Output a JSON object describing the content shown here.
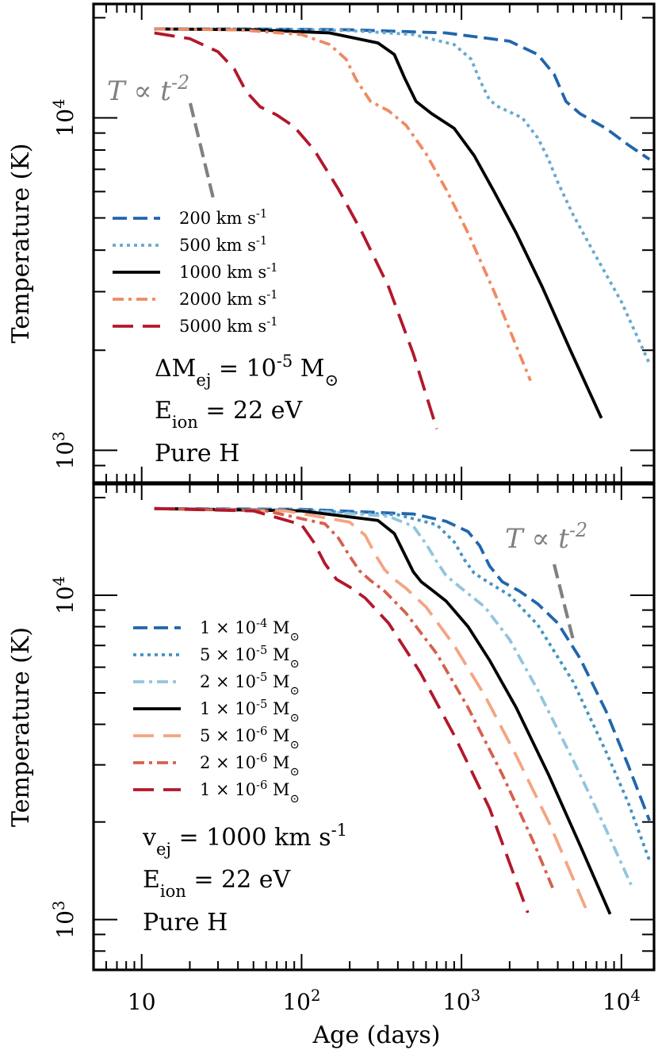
{
  "chart_data": [
    {
      "type": "line",
      "panel": "top",
      "xlabel": "",
      "ylabel": "Temperature (K)",
      "xscale": "log",
      "yscale": "log",
      "xlim": [
        5,
        16000
      ],
      "ylim": [
        800,
        22000
      ],
      "y_tick_labels": [
        "10^3",
        "10^4"
      ],
      "legend_position": "left",
      "annotations": [
        "ΔM_ej = 10^-5 M_⊙",
        "E_ion = 22 eV",
        "Pure H"
      ],
      "slope_label": "T ∝ t^-2",
      "series": [
        {
          "name": "200 km s^-1",
          "color": "#2166ac",
          "dash": "dashed",
          "x": [
            12,
            50,
            200,
            800,
            2000,
            3000,
            3800,
            4500,
            5500,
            8000,
            11000,
            15000
          ],
          "y": [
            18500,
            18500,
            18400,
            18000,
            17000,
            15500,
            13500,
            11200,
            10300,
            9300,
            8300,
            7500
          ]
        },
        {
          "name": "500 km s^-1",
          "color": "#67a9cf",
          "dash": "dotted",
          "x": [
            12,
            50,
            200,
            500,
            900,
            1150,
            1300,
            1500,
            1700,
            2400,
            3000,
            3500,
            4000,
            5000,
            7000,
            10000,
            15000
          ],
          "y": [
            18500,
            18500,
            18300,
            17800,
            16600,
            15000,
            13000,
            11300,
            10800,
            10000,
            8700,
            7500,
            6400,
            5100,
            3800,
            2800,
            1820
          ]
        },
        {
          "name": "1000 km s^-1",
          "color": "#000000",
          "dash": "solid",
          "x": [
            12,
            50,
            150,
            300,
            380,
            440,
            520,
            650,
            900,
            1200,
            1600,
            2200,
            3200,
            4800,
            7500
          ],
          "y": [
            18500,
            18400,
            18000,
            16800,
            15500,
            13200,
            11200,
            10300,
            9300,
            7700,
            6000,
            4500,
            3100,
            2000,
            1250
          ]
        },
        {
          "name": "2000 km s^-1",
          "color": "#ef8a62",
          "dash": "dashdot",
          "x": [
            12,
            40,
            100,
            150,
            190,
            220,
            270,
            350,
            450,
            600,
            800,
            1100,
            1600,
            2700
          ],
          "y": [
            18500,
            18400,
            17800,
            16600,
            15000,
            13000,
            11200,
            10500,
            9500,
            7800,
            6100,
            4500,
            3000,
            1620
          ]
        },
        {
          "name": "5000 km s^-1",
          "color": "#b2182b",
          "dash": "longdash",
          "x": [
            12,
            20,
            30,
            38,
            45,
            55,
            70,
            90,
            120,
            170,
            240,
            350,
            500,
            700
          ],
          "y": [
            18000,
            17300,
            15800,
            14000,
            12000,
            10800,
            10200,
            9400,
            8000,
            6100,
            4500,
            3100,
            1950,
            1160
          ]
        }
      ]
    },
    {
      "type": "line",
      "panel": "bottom",
      "xlabel": "Age (days)",
      "ylabel": "Temperature (K)",
      "xscale": "log",
      "yscale": "log",
      "xlim": [
        5,
        16000
      ],
      "ylim": [
        700,
        22000
      ],
      "x_tick_labels": [
        "10",
        "10^2",
        "10^3",
        "10^4"
      ],
      "y_tick_labels": [
        "10^3",
        "10^4"
      ],
      "legend_position": "left",
      "annotations": [
        "v_ej = 1000 km s^-1",
        "E_ion = 22 eV",
        "Pure H"
      ],
      "slope_label": "T ∝ t^-2",
      "series": [
        {
          "name": "1 × 10^-4 M_⊙",
          "color": "#2166ac",
          "dash": "dashed",
          "x": [
            12,
            100,
            500,
            800,
            1100,
            1300,
            1500,
            1800,
            2300,
            3000,
            4000,
            5500,
            8000,
            11000,
            15000
          ],
          "y": [
            18500,
            18400,
            17800,
            16900,
            15700,
            14200,
            12300,
            11000,
            10300,
            9400,
            8200,
            6400,
            4400,
            3000,
            2020
          ]
        },
        {
          "name": "5 × 10^-5 M_⊙",
          "color": "#4393c3",
          "dash": "dotted",
          "x": [
            12,
            100,
            400,
            700,
            900,
            1050,
            1200,
            1500,
            2000,
            3000,
            5000,
            8000,
            11000,
            15000
          ],
          "y": [
            18500,
            18300,
            17700,
            16500,
            14600,
            12800,
            11700,
            10900,
            10000,
            8100,
            5400,
            3300,
            2300,
            1520
          ]
        },
        {
          "name": "2 × 10^-5 M_⊙",
          "color": "#92c5de",
          "dash": "dashdot",
          "x": [
            12,
            100,
            350,
            500,
            600,
            700,
            800,
            1000,
            1400,
            2000,
            3000,
            5000,
            8000,
            11500
          ],
          "y": [
            18500,
            18300,
            17500,
            16300,
            14400,
            12700,
            11500,
            10500,
            9200,
            7300,
            5100,
            3100,
            1900,
            1280
          ]
        },
        {
          "name": "1 × 10^-5 M_⊙",
          "color": "#000000",
          "dash": "solid",
          "x": [
            12,
            100,
            300,
            380,
            440,
            500,
            560,
            650,
            800,
            1100,
            1500,
            2200,
            3500,
            5500,
            8500
          ],
          "y": [
            18500,
            18200,
            17000,
            15500,
            13400,
            11800,
            11000,
            10400,
            9600,
            8000,
            6300,
            4500,
            2800,
            1700,
            1040
          ]
        },
        {
          "name": "5 × 10^-6 M_⊙",
          "color": "#f4a582",
          "dash": "longdash",
          "x": [
            12,
            80,
            200,
            250,
            290,
            330,
            380,
            450,
            600,
            900,
            1400,
            2200,
            3600,
            6000
          ],
          "y": [
            18500,
            18200,
            16800,
            15300,
            13300,
            12000,
            11200,
            10500,
            9200,
            7000,
            4900,
            3200,
            1950,
            1080
          ]
        },
        {
          "name": "2 × 10^-6 M_⊙",
          "color": "#d6604d",
          "dash": "dashdot",
          "x": [
            12,
            60,
            140,
            170,
            200,
            230,
            270,
            330,
            450,
            700,
            1100,
            1800,
            2800,
            3800
          ],
          "y": [
            18500,
            18200,
            16600,
            15000,
            13200,
            11900,
            11100,
            10300,
            8800,
            6600,
            4500,
            2800,
            1750,
            1220
          ]
        },
        {
          "name": "1 × 10^-6 M_⊙",
          "color": "#b2182b",
          "dash": "longdash",
          "x": [
            12,
            50,
            100,
            120,
            140,
            165,
            200,
            250,
            350,
            550,
            900,
            1500,
            2600
          ],
          "y": [
            18500,
            18200,
            16500,
            14500,
            12500,
            11200,
            10600,
            9800,
            8200,
            5800,
            3700,
            2200,
            1050
          ]
        }
      ]
    }
  ]
}
